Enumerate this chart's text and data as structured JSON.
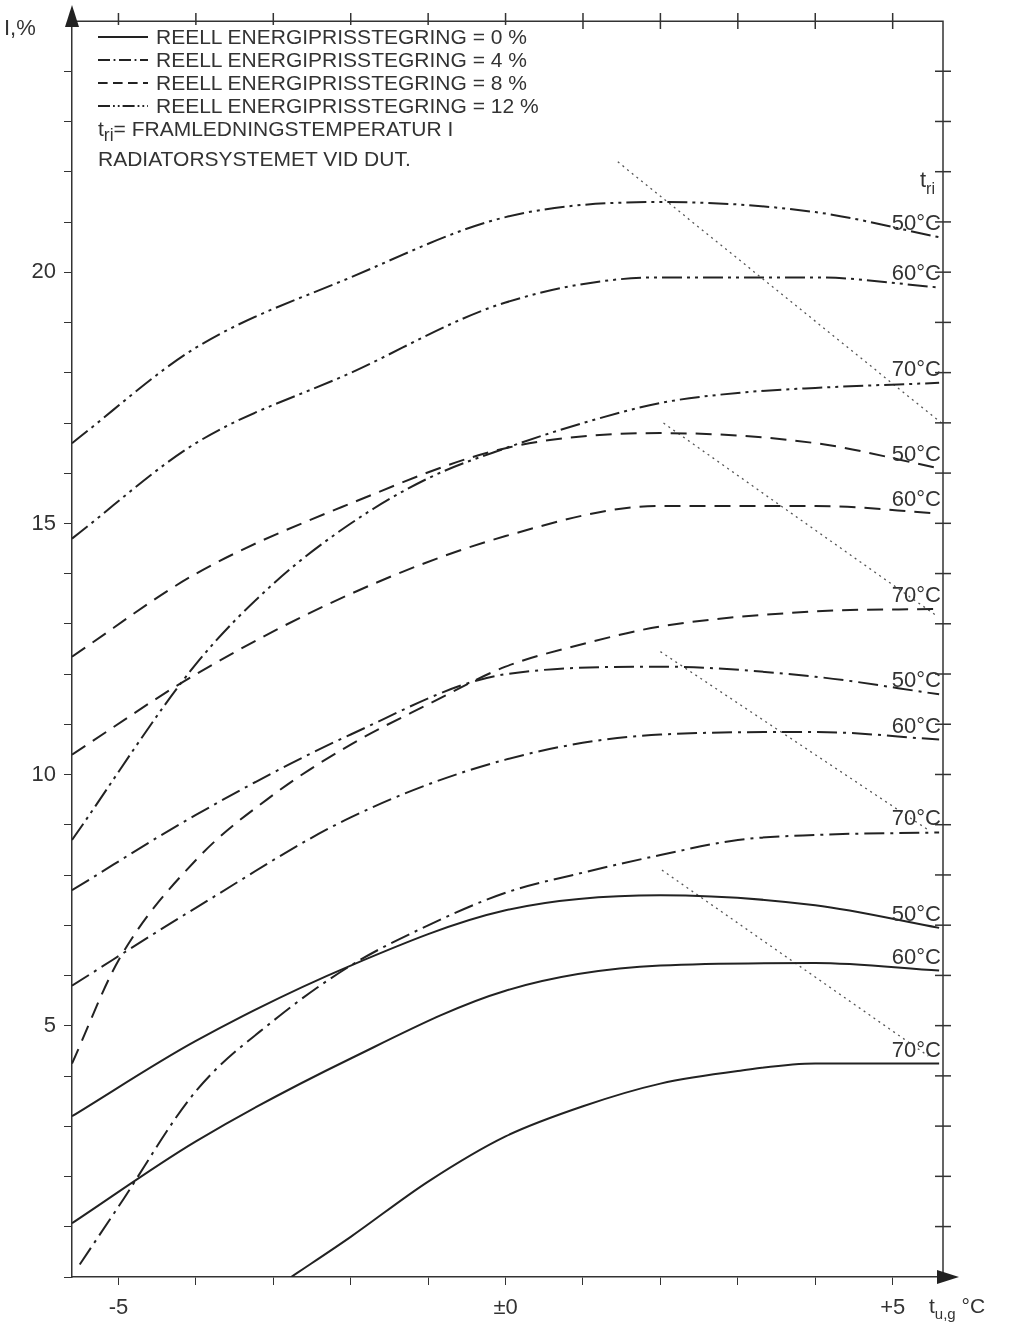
{
  "chart_data": {
    "type": "line",
    "xlabel": "t$_{u,g}$ °C",
    "ylabel": "I,%",
    "legend_title": "t$_{ri}$",
    "annotations": [
      "REELL ENERGIPRISSTEGRING = 0 %",
      "REELL ENERGIPRISSTEGRING = 4 %",
      "REELL ENERGIPRISSTEGRING = 8 %",
      "REELL ENERGIPRISSTEGRING = 12 %",
      "t$_{ri}$= FRAMLEDNINGSTEMPERATUR I RADIATORSYSTEMET VID DUT."
    ],
    "xlim": [
      -5.6,
      5.65
    ],
    "ylim": [
      0,
      25
    ],
    "xticks": [
      -5,
      {
        "value": -4,
        "label": null
      },
      {
        "value": -3,
        "label": null
      },
      {
        "value": -2,
        "label": null
      },
      {
        "value": -1,
        "label": null
      },
      {
        "value": 0,
        "label": "±0"
      },
      {
        "value": 1,
        "label": null
      },
      {
        "value": 2,
        "label": null
      },
      {
        "value": 3,
        "label": null
      },
      {
        "value": 4,
        "label": null
      },
      {
        "value": 5,
        "label": "+5"
      }
    ],
    "yticks": [
      {
        "value": 0,
        "label": null
      },
      {
        "value": 1,
        "label": null
      },
      {
        "value": 2,
        "label": null
      },
      {
        "value": 3,
        "label": null
      },
      {
        "value": 4,
        "label": null
      },
      5,
      {
        "value": 6,
        "label": null
      },
      {
        "value": 7,
        "label": null
      },
      {
        "value": 8,
        "label": null
      },
      {
        "value": 9,
        "label": null
      },
      10,
      {
        "value": 11,
        "label": null
      },
      {
        "value": 12,
        "label": null
      },
      {
        "value": 13,
        "label": null
      },
      {
        "value": 14,
        "label": null
      },
      15,
      {
        "value": 16,
        "label": null
      },
      {
        "value": 17,
        "label": null
      },
      {
        "value": 18,
        "label": null
      },
      {
        "value": 19,
        "label": null
      },
      20,
      {
        "value": 21,
        "label": null
      },
      {
        "value": 22,
        "label": null
      },
      {
        "value": 23,
        "label": null
      },
      {
        "value": 24,
        "label": null
      }
    ],
    "series": [
      {
        "name": "50°C",
        "color": "#222222",
        "line_style": "solid",
        "x": [
          -5.6,
          -4,
          -2,
          0,
          2,
          4,
          5.6
        ],
        "values": [
          3.2,
          4.7,
          6.2,
          7.3,
          7.6,
          7.4,
          6.95
        ]
      },
      {
        "name": "60°C",
        "color": "#222222",
        "line_style": "solid",
        "x": [
          -5.6,
          -4,
          -2,
          0,
          2,
          4,
          5.6
        ],
        "values": [
          1.07,
          2.7,
          4.35,
          5.7,
          6.2,
          6.25,
          6.1
        ]
      },
      {
        "name": "70°C",
        "color": "#222222",
        "line_style": "solid",
        "x": [
          -2.77,
          -2,
          -1,
          0,
          1,
          2,
          3,
          4,
          5.6
        ],
        "values": [
          0,
          0.8,
          1.9,
          2.8,
          3.4,
          3.85,
          4.1,
          4.25,
          4.25
        ]
      },
      {
        "name": "50°C",
        "color": "#222222",
        "line_style": "dashdot",
        "x": [
          -5.6,
          -4,
          -2,
          0,
          2,
          4,
          5.6
        ],
        "values": [
          7.7,
          9.2,
          10.8,
          12.0,
          12.15,
          11.95,
          11.6
        ]
      },
      {
        "name": "60°C",
        "color": "#222222",
        "line_style": "dashdot",
        "x": [
          -5.6,
          -4,
          -2,
          0,
          2,
          4,
          5.6
        ],
        "values": [
          5.8,
          7.35,
          9.15,
          10.3,
          10.8,
          10.85,
          10.7
        ]
      },
      {
        "name": "70°C",
        "color": "#222222",
        "line_style": "dashdot",
        "x": [
          -5.5,
          -5,
          -4,
          -3,
          -2,
          -1,
          0,
          1,
          2,
          3,
          4,
          5.6
        ],
        "values": [
          0.25,
          1.4,
          3.7,
          5.1,
          6.2,
          7.0,
          7.65,
          8.05,
          8.4,
          8.7,
          8.8,
          8.85
        ]
      },
      {
        "name": "50°C",
        "color": "#222222",
        "line_style": "dashed",
        "x": [
          -5.6,
          -4,
          -2,
          0,
          2,
          4,
          5.6
        ],
        "values": [
          12.35,
          14.0,
          15.4,
          16.5,
          16.8,
          16.6,
          16.1
        ]
      },
      {
        "name": "60°C",
        "color": "#222222",
        "line_style": "dashed",
        "x": [
          -5.6,
          -4,
          -2,
          0,
          2,
          4,
          5.6
        ],
        "values": [
          10.4,
          12.0,
          13.6,
          14.75,
          15.35,
          15.35,
          15.2
        ]
      },
      {
        "name": "70°C",
        "color": "#222222",
        "line_style": "dashed",
        "x": [
          -5.6,
          -5,
          -4,
          -3,
          -2,
          -1,
          0,
          1,
          2,
          4,
          5.6
        ],
        "values": [
          4.25,
          6.3,
          8.3,
          9.6,
          10.6,
          11.4,
          12.15,
          12.6,
          12.95,
          13.25,
          13.3
        ]
      },
      {
        "name": "50°C",
        "color": "#222222",
        "line_style": "dashdotdot",
        "x": [
          -5.6,
          -4,
          -2,
          0,
          2,
          4,
          5.6
        ],
        "values": [
          16.6,
          18.5,
          19.9,
          21.1,
          21.4,
          21.2,
          20.7
        ]
      },
      {
        "name": "60°C",
        "color": "#222222",
        "line_style": "dashdotdot",
        "x": [
          -5.6,
          -4,
          -2,
          0,
          2,
          4,
          5.6
        ],
        "values": [
          14.7,
          16.6,
          18.0,
          19.4,
          19.9,
          19.9,
          19.7
        ]
      },
      {
        "name": "70°C",
        "color": "#222222",
        "line_style": "dashdotdot",
        "x": [
          -5.6,
          -4,
          -3,
          -2,
          -1,
          0,
          1,
          2,
          3,
          4,
          5.6
        ],
        "values": [
          8.7,
          12.2,
          13.8,
          15.0,
          15.9,
          16.5,
          17.0,
          17.4,
          17.6,
          17.7,
          17.8
        ]
      },
      {
        "color": "#555555",
        "line_style": "dotted",
        "x": [
          1.45,
          5.63
        ],
        "values": [
          22.2,
          17.0
        ]
      },
      {
        "color": "#555555",
        "line_style": "dotted",
        "x": [
          2.04,
          5.58
        ],
        "values": [
          17.0,
          13.15
        ]
      },
      {
        "color": "#555555",
        "line_style": "dotted",
        "x": [
          2.0,
          5.46
        ],
        "values": [
          12.45,
          8.9
        ]
      },
      {
        "color": "#555555",
        "line_style": "dotted",
        "x": [
          2.02,
          5.46
        ],
        "values": [
          8.1,
          4.4
        ]
      }
    ]
  }
}
